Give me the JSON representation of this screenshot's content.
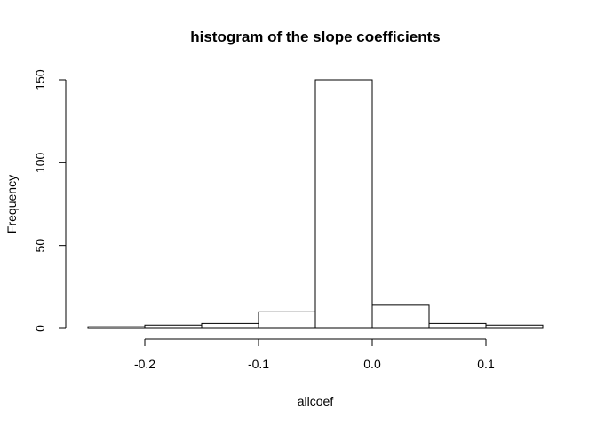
{
  "chart_data": {
    "type": "bar",
    "title": "histogram of the slope coefficients",
    "xlabel": "allcoef",
    "ylabel": "Frequency",
    "bins": [
      {
        "start": -0.25,
        "end": -0.2,
        "count": 1
      },
      {
        "start": -0.2,
        "end": -0.15,
        "count": 2
      },
      {
        "start": -0.15,
        "end": -0.1,
        "count": 3
      },
      {
        "start": -0.1,
        "end": -0.05,
        "count": 10
      },
      {
        "start": -0.05,
        "end": 0.0,
        "count": 150
      },
      {
        "start": 0.0,
        "end": 0.05,
        "count": 14
      },
      {
        "start": 0.05,
        "end": 0.1,
        "count": 3
      },
      {
        "start": 0.1,
        "end": 0.15,
        "count": 2
      }
    ],
    "xlim": [
      -0.25,
      0.15
    ],
    "ylim": [
      0,
      150
    ],
    "x_ticks": [
      {
        "value": -0.2,
        "label": "-0.2"
      },
      {
        "value": -0.1,
        "label": "-0.1"
      },
      {
        "value": 0.0,
        "label": "0.0"
      },
      {
        "value": 0.1,
        "label": "0.1"
      }
    ],
    "y_ticks": [
      {
        "value": 0,
        "label": "0"
      },
      {
        "value": 50,
        "label": "50"
      },
      {
        "value": 100,
        "label": "100"
      },
      {
        "value": 150,
        "label": "150"
      }
    ],
    "grid": false,
    "legend": "none"
  }
}
